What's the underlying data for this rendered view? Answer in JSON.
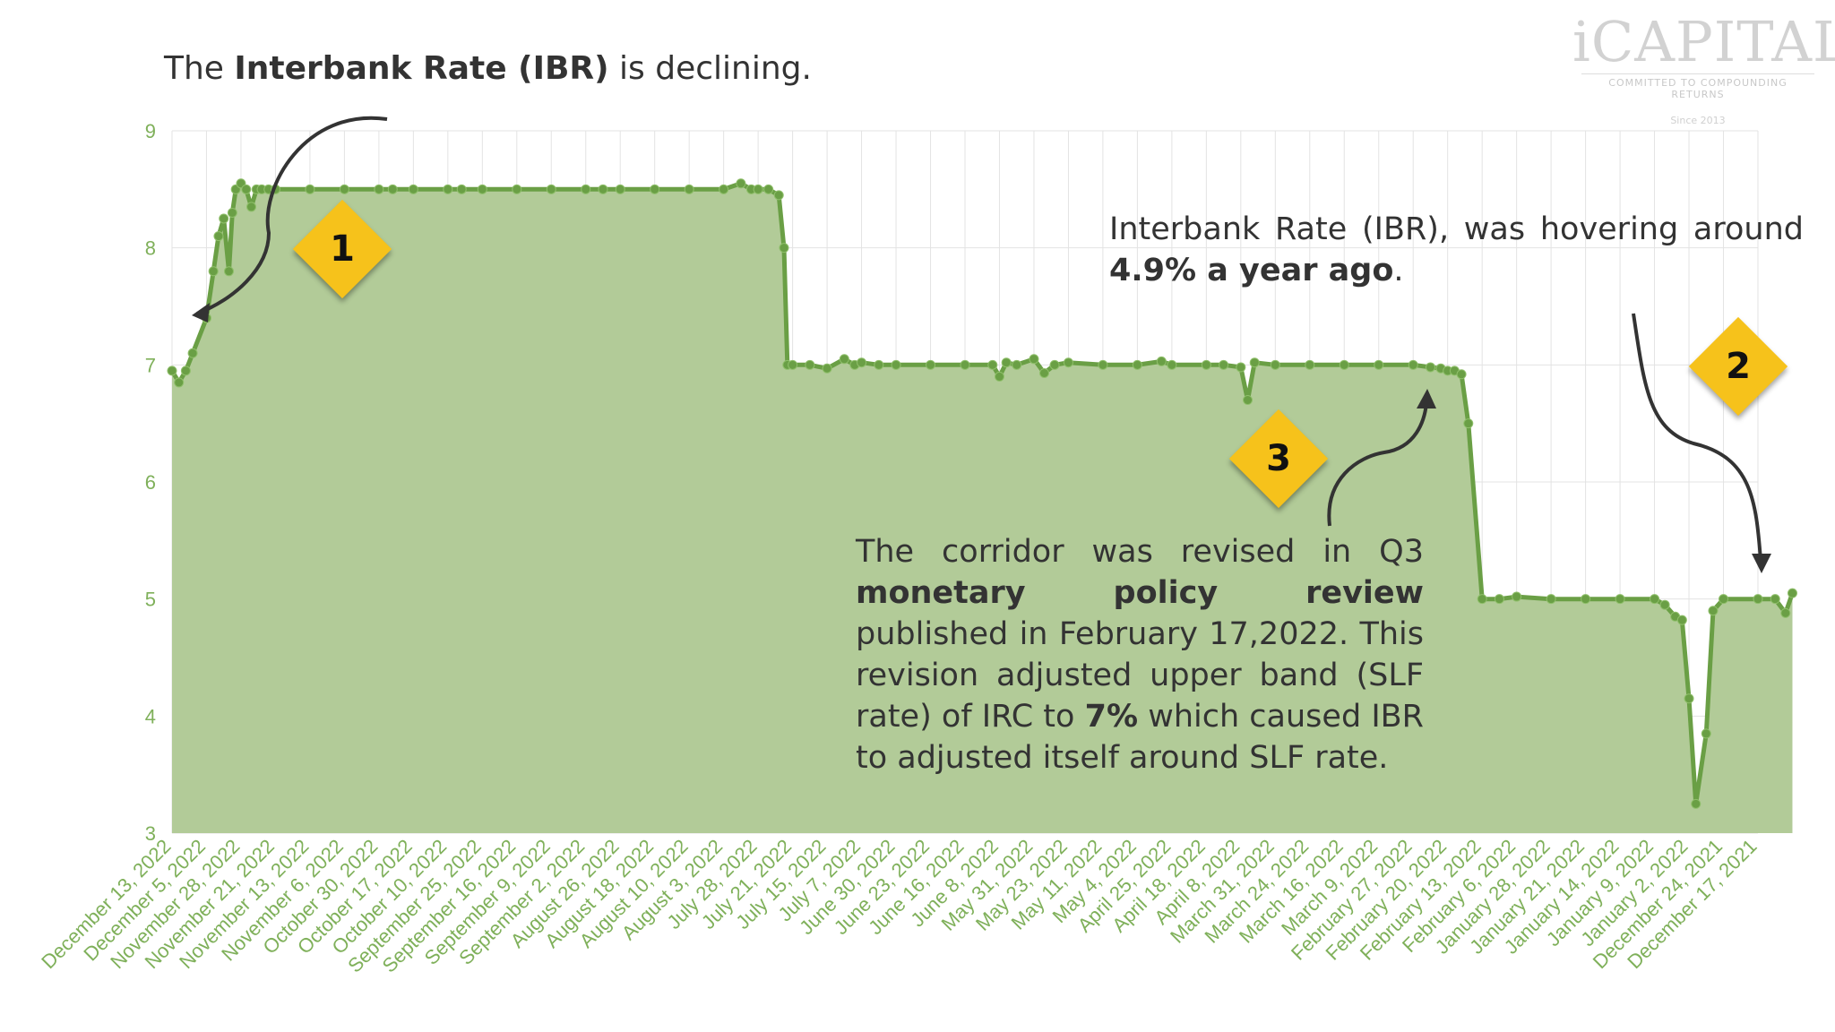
{
  "header": {
    "title_prefix": "The ",
    "title_bold": "Interbank Rate (IBR)",
    "title_suffix": " is declining."
  },
  "logo": {
    "brand": "iCAPITAL",
    "tagline": "COMMITTED TO COMPOUNDING RETURNS",
    "since": "Since 2013"
  },
  "annotations": {
    "badge1": "1",
    "badge2": "2",
    "badge3": "3",
    "note2_text": "Interbank Rate (IBR), was hovering around ",
    "note2_bold": "4.9% a year ago",
    "note2_end": ".",
    "note3_a": "The corridor was revised in Q3 ",
    "note3_bold1": "monetary policy review",
    "note3_b": " published in February 17,2022. This revision adjusted upper band (SLF rate) of IRC to ",
    "note3_bold2": "7%",
    "note3_c": " which caused IBR to adjusted itself around SLF rate."
  },
  "colors": {
    "fill": "#b2cb98",
    "line": "#6a9f45",
    "grid": "#e3e3e3",
    "tick_label": "#7fb05a",
    "badge": "#f6c21b"
  },
  "chart_data": {
    "type": "area",
    "title": "",
    "xlabel": "",
    "ylabel": "",
    "ylim": [
      3,
      9
    ],
    "yticks": [
      3,
      4,
      5,
      6,
      7,
      8,
      9
    ],
    "grid": true,
    "x_order": "newest on left",
    "xtick_labels": [
      "December 13, 2022",
      "December 5, 2022",
      "November 28, 2022",
      "November 21, 2022",
      "November 13, 2022",
      "November 6, 2022",
      "October 30, 2022",
      "October 17, 2022",
      "October 10, 2022",
      "September 25, 2022",
      "September 16, 2022",
      "September 9, 2022",
      "September 2, 2022",
      "August 26, 2022",
      "August 18, 2022",
      "August 10, 2022",
      "August 3, 2022",
      "July 28, 2022",
      "July 21, 2022",
      "July 15, 2022",
      "July 7, 2022",
      "June 30, 2022",
      "June 23, 2022",
      "June 16, 2022",
      "June 8, 2022",
      "May 31, 2022",
      "May 23, 2022",
      "May 11, 2022",
      "May 4, 2022",
      "April 25, 2022",
      "April 18, 2022",
      "April 8, 2022",
      "March 31, 2022",
      "March 24, 2022",
      "March 16, 2022",
      "March 9, 2022",
      "February 27, 2022",
      "February 20, 2022",
      "February 13, 2022",
      "February 6, 2022",
      "January 28, 2022",
      "January 21, 2022",
      "January 14, 2022",
      "January 9, 2022",
      "January 2, 2022",
      "December 24, 2021",
      "December 17, 2021"
    ],
    "series": [
      {
        "x": [
          0,
          0.2,
          0.4,
          0.6,
          1.0,
          1.2,
          1.35,
          1.5,
          1.65,
          1.75,
          1.85,
          2.0,
          2.15,
          2.3,
          2.45,
          2.6,
          2.8,
          3.0,
          4.0,
          5.0,
          6.0,
          6.4,
          7.0,
          8.0,
          8.4,
          9.0,
          10.0,
          11.0,
          12.0,
          12.5,
          13.0,
          14.0,
          15.0,
          16.0,
          16.5,
          16.8,
          17.0,
          17.3,
          17.6,
          17.75,
          17.85,
          18.0,
          18.5,
          19.0,
          19.5,
          19.8,
          20.0,
          20.5,
          21.0,
          22.0,
          23.0,
          23.8,
          24.0,
          24.2,
          24.5,
          25.0,
          25.3,
          25.6,
          26.0,
          27.0,
          28.0,
          28.7,
          29.0,
          30.0,
          30.5,
          31.0,
          31.2,
          31.4,
          32.0,
          33.0,
          34.0,
          35.0,
          36.0,
          36.5,
          36.8,
          37.0,
          37.2,
          37.4,
          37.6,
          38.0,
          38.5,
          39.0,
          40.0,
          41.0,
          42.0,
          43.0,
          43.3,
          43.6,
          43.8,
          44.0,
          44.2,
          44.5,
          44.7,
          45.0,
          46.0,
          46.5,
          46.8,
          47.0
        ],
        "y": [
          6.95,
          6.85,
          6.95,
          7.1,
          7.4,
          7.8,
          8.1,
          8.25,
          7.8,
          8.3,
          8.5,
          8.55,
          8.5,
          8.35,
          8.5,
          8.5,
          8.5,
          8.5,
          8.5,
          8.5,
          8.5,
          8.5,
          8.5,
          8.5,
          8.5,
          8.5,
          8.5,
          8.5,
          8.5,
          8.5,
          8.5,
          8.5,
          8.5,
          8.5,
          8.55,
          8.5,
          8.5,
          8.5,
          8.45,
          8.0,
          7.0,
          7.0,
          7.0,
          6.97,
          7.05,
          7.0,
          7.02,
          7.0,
          7.0,
          7.0,
          7.0,
          7.0,
          6.9,
          7.02,
          7.0,
          7.05,
          6.93,
          7.0,
          7.02,
          7.0,
          7.0,
          7.03,
          7.0,
          7.0,
          7.0,
          6.98,
          6.7,
          7.02,
          7.0,
          7.0,
          7.0,
          7.0,
          7.0,
          6.98,
          6.97,
          6.95,
          6.95,
          6.92,
          6.5,
          5.0,
          5.0,
          5.02,
          5.0,
          5.0,
          5.0,
          5.0,
          4.95,
          4.85,
          4.82,
          4.15,
          3.25,
          3.85,
          4.9,
          5.0,
          5.0,
          5.0,
          4.88,
          5.05
        ]
      }
    ]
  }
}
